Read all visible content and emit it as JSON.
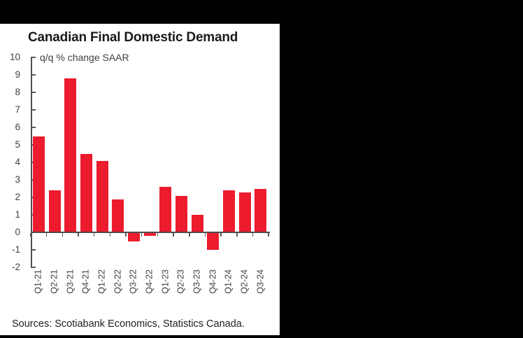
{
  "page": {
    "background_color": "#000000",
    "panel_color": "#ffffff"
  },
  "chart": {
    "title": "Canadian Final Domestic Demand",
    "subtitle": "q/q % change SAAR",
    "source_note": "Sources: Scotiabank Economics, Statistics Canada.",
    "colors": {
      "bar": "#ec1b2d",
      "axis_line": "#4d4d4f",
      "tick": "#58595b",
      "label_text": "#414042",
      "title_text": "#1a1a1a"
    }
  },
  "chart_data": {
    "type": "bar",
    "title": "Canadian Final Domestic Demand",
    "subtitle": "q/q % change SAAR",
    "categories": [
      "Q1-21",
      "Q2-21",
      "Q3-21",
      "Q4-21",
      "Q1-22",
      "Q2-22",
      "Q3-22",
      "Q4-22",
      "Q1-23",
      "Q2-23",
      "Q3-23",
      "Q4-23",
      "Q1-24",
      "Q2-24",
      "Q3-24"
    ],
    "values": [
      5.5,
      2.4,
      8.8,
      4.5,
      4.1,
      1.9,
      -0.5,
      -0.2,
      2.6,
      2.1,
      1.0,
      -1.0,
      2.4,
      2.3,
      2.5
    ],
    "bar_color": "#ec1b2d",
    "xlabel": "",
    "ylabel": "q/q % change SAAR",
    "ylim": [
      -2,
      10
    ],
    "ytick_interval": 1,
    "ytick_labels": [
      "10",
      "9",
      "8",
      "7",
      "6",
      "5",
      "4",
      "3",
      "2",
      "1",
      "0",
      "-1",
      "-2"
    ],
    "grid": false,
    "legend": "none",
    "source": "Sources: Scotiabank Economics, Statistics Canada."
  }
}
